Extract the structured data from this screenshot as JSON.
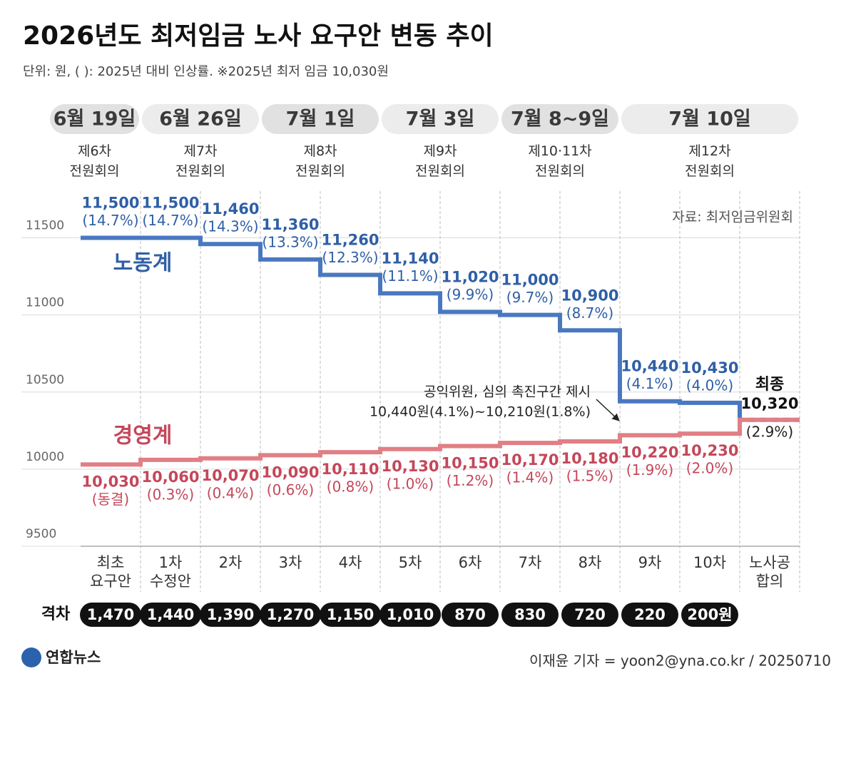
{
  "title": "2026년도 최저임금 노사 요구안 변동 추이",
  "subtitle": "단위: 원, (  ): 2025년 대비 인상률.  ※2025년 최저 임금 10,030원",
  "source": "자료: 최저임금위원회",
  "logo": "연합뉴스",
  "credit": "이재윤 기자 = yoon2@yna.co.kr / 20250710",
  "chart_data": {
    "type": "step",
    "dates": [
      "6월 19일",
      "6월 26일",
      "7월 1일",
      "7월 3일",
      "7월 8~9일",
      "7월 10일"
    ],
    "meetings": [
      "제6차\n전원회의",
      "제7차\n전원회의",
      "제8차\n전원회의",
      "제9차\n전원회의",
      "제10·11차\n전원회의",
      "제12차\n전원회의"
    ],
    "categories": [
      "최초\n요구안",
      "1차\n수정안",
      "2차",
      "3차",
      "4차",
      "5차",
      "6차",
      "7차",
      "8차",
      "9차",
      "10차",
      "노사공\n합의"
    ],
    "ylim": [
      9500,
      11780
    ],
    "yticks": [
      9500,
      10000,
      10500,
      11000,
      11500
    ],
    "grid": true,
    "series": [
      {
        "name": "노동계",
        "color": "#4a78c0",
        "label_color": "#2f5fa6",
        "values": [
          11500,
          11500,
          11460,
          11360,
          11260,
          11140,
          11020,
          11000,
          10900,
          10440,
          10430,
          null
        ],
        "value_labels": [
          "11,500",
          "11,500",
          "11,460",
          "11,360",
          "11,260",
          "11,140",
          "11,020",
          "11,000",
          "10,900",
          "10,440",
          "10,430",
          null
        ],
        "rates": [
          14.7,
          14.7,
          14.3,
          13.3,
          12.3,
          11.1,
          9.9,
          9.7,
          8.7,
          4.1,
          4.0,
          null
        ],
        "rate_labels": [
          "(14.7%)",
          "(14.7%)",
          "(14.3%)",
          "(13.3%)",
          "(12.3%)",
          "(11.1%)",
          "(9.9%)",
          "(9.7%)",
          "(8.7%)",
          "(4.1%)",
          "(4.0%)",
          null
        ]
      },
      {
        "name": "경영계",
        "color": "#e07f84",
        "label_color": "#c4475a",
        "values": [
          10030,
          10060,
          10070,
          10090,
          10110,
          10130,
          10150,
          10170,
          10180,
          10220,
          10230,
          null
        ],
        "value_labels": [
          "10,030",
          "10,060",
          "10,070",
          "10,090",
          "10,110",
          "10,130",
          "10,150",
          "10,170",
          "10,180",
          "10,220",
          "10,230",
          null
        ],
        "rates": [
          0,
          0.3,
          0.4,
          0.6,
          0.8,
          1.0,
          1.2,
          1.4,
          1.5,
          1.9,
          2.0,
          null
        ],
        "rate_labels": [
          "(동결)",
          "(0.3%)",
          "(0.4%)",
          "(0.6%)",
          "(0.8%)",
          "(1.0%)",
          "(1.2%)",
          "(1.4%)",
          "(1.5%)",
          "(1.9%)",
          "(2.0%)",
          null
        ]
      }
    ],
    "final": {
      "label": "최종",
      "value": 10320,
      "value_label": "10,320",
      "rate": 2.9,
      "rate_label": "(2.9%)"
    },
    "gap_title": "격차",
    "gaps": [
      1470,
      1440,
      1390,
      1270,
      1150,
      1010,
      870,
      830,
      720,
      220,
      200,
      null
    ],
    "gap_labels": [
      "1,470",
      "1,440",
      "1,390",
      "1,270",
      "1,150",
      "1,010",
      "870",
      "830",
      "720",
      "220",
      "200원",
      null
    ],
    "annotation": [
      "공익위원, 심의 촉진구간 제시",
      "10,440원(4.1%)~10,210원(1.8%)"
    ]
  }
}
